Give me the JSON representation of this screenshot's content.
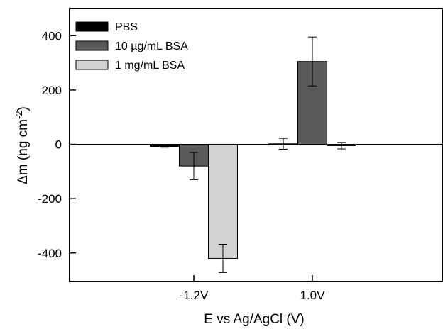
{
  "chart_data": {
    "type": "bar",
    "categories": [
      "-1.2V",
      "1.0V"
    ],
    "series": [
      {
        "name": "PBS",
        "values": [
          -8,
          2
        ],
        "errors": [
          3,
          20
        ],
        "color": "#000000"
      },
      {
        "name": "10 µg/mL BSA",
        "values": [
          -80,
          305
        ],
        "errors": [
          50,
          90
        ],
        "color": "#5a5a5a"
      },
      {
        "name": "1 mg/mL BSA",
        "values": [
          -420,
          -5
        ],
        "errors": [
          52,
          12
        ],
        "color": "#d2d2d2"
      }
    ],
    "xlabel": "E vs Ag/AgCl (V)",
    "ylabel_parts": {
      "base": "Δm (ng cm",
      "sup": "-2",
      "end": ")"
    },
    "ylim": [
      -505,
      500
    ],
    "yticks": [
      400,
      200,
      0,
      -200,
      -400
    ],
    "ytick_labels": [
      "400",
      "200",
      "0",
      "-200",
      "-400"
    ],
    "zero_line": true,
    "grid": false,
    "legend_position": "top-left"
  }
}
